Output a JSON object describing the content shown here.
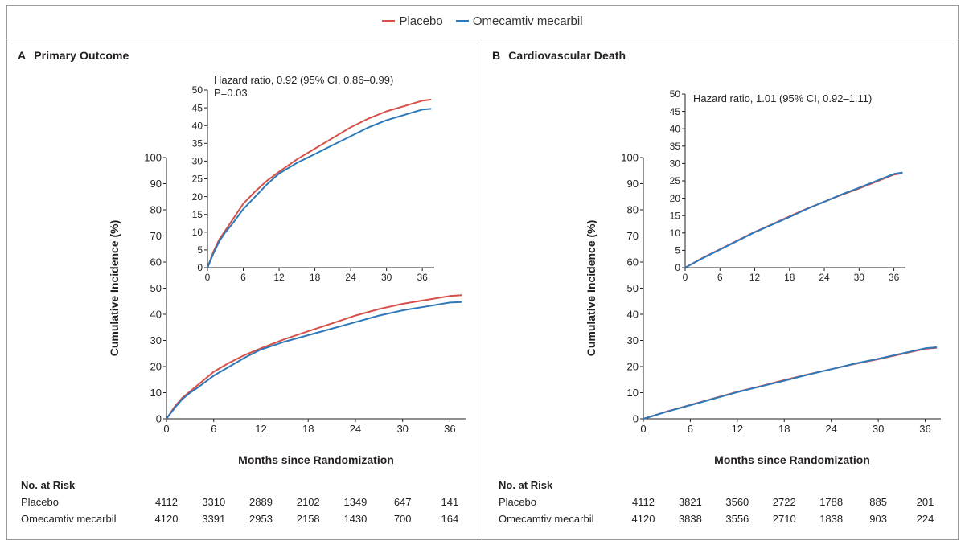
{
  "legend": {
    "items": [
      {
        "label": "Placebo",
        "color": "#d6504a"
      },
      {
        "label": "Omecamtiv mecarbil",
        "color": "#2f78b7"
      }
    ]
  },
  "chart_data": [
    {
      "type": "line",
      "panel_letter": "A",
      "title": "Primary Outcome",
      "xlabel": "Months since Randomization",
      "ylabel": "Cumulative Incidence (%)",
      "xlim": [
        0,
        38
      ],
      "ylim": [
        0,
        100
      ],
      "xticks": [
        "0",
        "6",
        "12",
        "18",
        "24",
        "30",
        "36"
      ],
      "yticks": [
        "0",
        "10",
        "20",
        "30",
        "40",
        "50",
        "60",
        "70",
        "80",
        "90",
        "100"
      ],
      "inset": {
        "xlim": [
          0,
          38
        ],
        "ylim": [
          0,
          50
        ],
        "xticks": [
          "0",
          "6",
          "12",
          "18",
          "24",
          "30",
          "36"
        ],
        "yticks": [
          "0",
          "5",
          "10",
          "15",
          "20",
          "25",
          "30",
          "35",
          "40",
          "45",
          "50"
        ],
        "annotation": [
          "Hazard ratio, 0.92 (95% CI, 0.86–0.99)",
          "P=0.03"
        ]
      },
      "series": [
        {
          "name": "Placebo",
          "x": [
            0,
            1,
            2,
            3,
            4,
            6,
            8,
            10,
            12,
            15,
            18,
            21,
            24,
            27,
            30,
            33,
            36,
            37.5
          ],
          "values": [
            0,
            4.5,
            8,
            10.5,
            13,
            18,
            21.5,
            24.5,
            27,
            30.5,
            33.5,
            36.5,
            39.5,
            42,
            44,
            45.5,
            47,
            47.3
          ]
        },
        {
          "name": "Omecamtiv mecarbil",
          "x": [
            0,
            1,
            2,
            3,
            4,
            6,
            8,
            10,
            12,
            15,
            18,
            21,
            24,
            27,
            30,
            33,
            36,
            37.5
          ],
          "values": [
            0,
            4,
            7.5,
            10,
            12,
            16.5,
            20,
            23.5,
            26.5,
            29.5,
            32,
            34.5,
            37,
            39.5,
            41.5,
            43,
            44.5,
            44.7
          ]
        }
      ],
      "risk_table": {
        "title": "No. at Risk",
        "rows": [
          {
            "label": "Placebo",
            "values": [
              "4112",
              "3310",
              "2889",
              "2102",
              "1349",
              "647",
              "141"
            ]
          },
          {
            "label": "Omecamtiv mecarbil",
            "values": [
              "4120",
              "3391",
              "2953",
              "2158",
              "1430",
              "700",
              "164"
            ]
          }
        ]
      }
    },
    {
      "type": "line",
      "panel_letter": "B",
      "title": "Cardiovascular Death",
      "xlabel": "Months since Randomization",
      "ylabel": "Cumulative Incidence (%)",
      "xlim": [
        0,
        38
      ],
      "ylim": [
        0,
        100
      ],
      "xticks": [
        "0",
        "6",
        "12",
        "18",
        "24",
        "30",
        "36"
      ],
      "yticks": [
        "0",
        "10",
        "20",
        "30",
        "40",
        "50",
        "60",
        "70",
        "80",
        "90",
        "100"
      ],
      "inset": {
        "xlim": [
          0,
          38
        ],
        "ylim": [
          0,
          50
        ],
        "xticks": [
          "0",
          "6",
          "12",
          "18",
          "24",
          "30",
          "36"
        ],
        "yticks": [
          "0",
          "5",
          "10",
          "15",
          "20",
          "25",
          "30",
          "35",
          "40",
          "45",
          "50"
        ],
        "annotation": [
          "Hazard ratio, 1.01 (95% CI, 0.92–1.11)"
        ]
      },
      "series": [
        {
          "name": "Placebo",
          "x": [
            0,
            3,
            6,
            9,
            12,
            15,
            18,
            21,
            24,
            27,
            30,
            33,
            36,
            37.5
          ],
          "values": [
            0,
            2.8,
            5.3,
            7.8,
            10.3,
            12.5,
            14.8,
            17,
            19,
            21,
            22.8,
            24.8,
            26.8,
            27.2
          ]
        },
        {
          "name": "Omecamtiv mecarbil",
          "x": [
            0,
            3,
            6,
            9,
            12,
            15,
            18,
            21,
            24,
            27,
            30,
            33,
            36,
            37.5
          ],
          "values": [
            0,
            2.7,
            5.2,
            7.7,
            10.2,
            12.4,
            14.6,
            16.9,
            19,
            21.1,
            23,
            25,
            27,
            27.4
          ]
        }
      ],
      "risk_table": {
        "title": "No. at Risk",
        "rows": [
          {
            "label": "Placebo",
            "values": [
              "4112",
              "3821",
              "3560",
              "2722",
              "1788",
              "885",
              "201"
            ]
          },
          {
            "label": "Omecamtiv mecarbil",
            "values": [
              "4120",
              "3838",
              "3556",
              "2710",
              "1838",
              "903",
              "224"
            ]
          }
        ]
      }
    }
  ]
}
